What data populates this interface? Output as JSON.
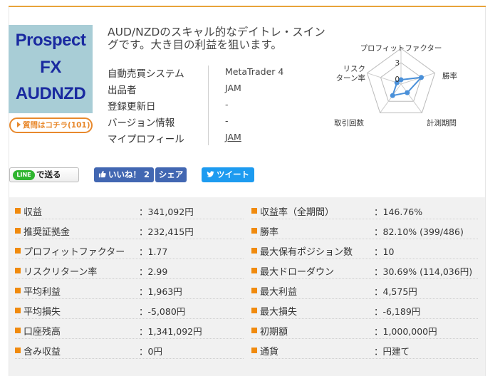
{
  "logo": {
    "line1": "Prospect",
    "line2": "FX",
    "line3": "AUDNZD"
  },
  "question_button": "質問はコチラ(101)",
  "description": "AUD/NZDのスキャル的なデイトレ・スイングです。大き目の利益を狙います。",
  "info": [
    {
      "key": "自動売買システム",
      "value": "MetaTrader 4"
    },
    {
      "key": "出品者",
      "value": "JAM"
    },
    {
      "key": "登録更新日",
      "value": "-"
    },
    {
      "key": "バージョン情報",
      "value": "-"
    },
    {
      "key": "マイプロフィール",
      "value": "JAM"
    }
  ],
  "radar": {
    "axes": [
      "プロフィットファクター",
      "勝率",
      "計測期間",
      "取引回数",
      "リスクターン率"
    ],
    "axis_label_lines": [
      [
        "プロフィットファクター"
      ],
      [
        "勝率"
      ],
      [
        "計測期間"
      ],
      [
        "取引回数"
      ],
      [
        "リスク",
        "ターン率"
      ]
    ],
    "scale_labels": [
      "3",
      "0"
    ],
    "max": 5,
    "values": [
      0.6,
      3.0,
      1.5,
      2.0,
      0.6
    ],
    "color": "#4a90d9"
  },
  "social": {
    "line_logo": "LINE",
    "line_label": "で送る",
    "like_label": "いいね！",
    "like_count": "2",
    "share_label": "シェア",
    "tweet_label": "ツイート"
  },
  "stats": [
    {
      "label": "収益",
      "value": "：341,092円",
      "label2": "収益率（全期間）",
      "value2": "：146.76%"
    },
    {
      "label": "推奨証拠金",
      "value": "：232,415円",
      "label2": "勝率",
      "value2": "：82.10% (399/486)"
    },
    {
      "label": "プロフィットファクター",
      "value": "：1.77",
      "label2": "最大保有ポジション数",
      "value2": "：10"
    },
    {
      "label": "リスクリターン率",
      "value": "：2.99",
      "label2": "最大ドローダウン",
      "value2": "：30.69% (114,036円)"
    },
    {
      "label": "平均利益",
      "value": "：1,963円",
      "label2": "最大利益",
      "value2": "：4,575円"
    },
    {
      "label": "平均損失",
      "value": "：-5,080円",
      "label2": "最大損失",
      "value2": "：-6,189円"
    },
    {
      "label": "口座残高",
      "value": "：1,341,092円",
      "label2": "初期額",
      "value2": "：1,000,000円"
    },
    {
      "label": "含み収益",
      "value": "：0円",
      "label2": "通貨",
      "value2": "：円建て"
    }
  ],
  "colors": {
    "accent": "#e8a33a",
    "bullet": "#f08a0d",
    "facebook": "#4267b2",
    "twitter": "#1d9bf0",
    "line": "#2fb52f"
  }
}
